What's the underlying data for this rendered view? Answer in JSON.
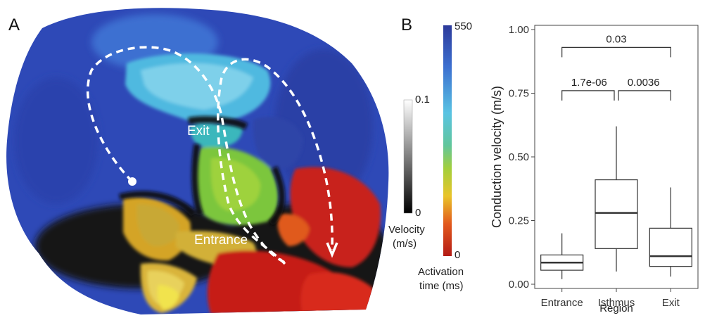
{
  "panel_a": {
    "letter": "A",
    "exit_label": "Exit",
    "entrance_label": "Entrance"
  },
  "color_bars": {
    "velocity": {
      "top": "0.1",
      "bottom": "0",
      "title_line1": "Velocity",
      "title_line2": "(m/s)"
    },
    "activation": {
      "top": "550",
      "bottom": "0",
      "title_line1": "Activation",
      "title_line2": "time (ms)"
    }
  },
  "panel_b": {
    "letter": "B"
  },
  "chart_data": {
    "type": "box",
    "categories": [
      "Entrance",
      "Isthmus",
      "Exit"
    ],
    "xlabel": "Region",
    "ylabel": "Conduction velocity (m/s)",
    "ylim": [
      0,
      1.0
    ],
    "yticks": [
      "0.00",
      "0.25",
      "0.50",
      "0.75",
      "1.00"
    ],
    "boxes": [
      {
        "category": "Entrance",
        "whisker_low": 0.02,
        "q1": 0.055,
        "median": 0.085,
        "q3": 0.115,
        "whisker_high": 0.2
      },
      {
        "category": "Isthmus",
        "whisker_low": 0.05,
        "q1": 0.14,
        "median": 0.28,
        "q3": 0.41,
        "whisker_high": 0.62
      },
      {
        "category": "Exit",
        "whisker_low": 0.03,
        "q1": 0.07,
        "median": 0.11,
        "q3": 0.22,
        "whisker_high": 0.38
      }
    ],
    "comparisons": [
      {
        "from": "Entrance",
        "to": "Exit",
        "p": "0.03",
        "y": 0.93
      },
      {
        "from": "Entrance",
        "to": "Isthmus",
        "p": "1.7e-06",
        "y": 0.76
      },
      {
        "from": "Isthmus",
        "to": "Exit",
        "p": "0.0036",
        "y": 0.76
      }
    ]
  }
}
